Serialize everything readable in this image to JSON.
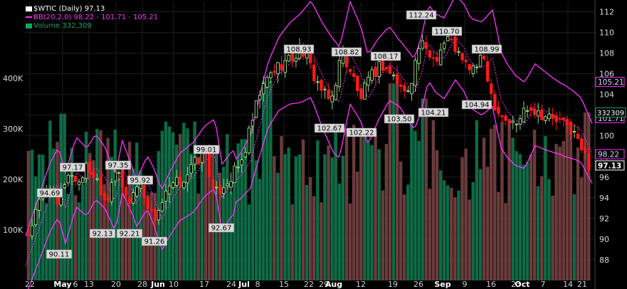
{
  "chart_data": {
    "type": "candlestick",
    "symbol": "$WTIC",
    "title": "$WTIC (Daily) 97.13",
    "legend": [
      {
        "text": "$WTIC (Daily) 97.13",
        "color": "#ffffff"
      },
      {
        "text": "BB(20,2.0) 98.22 - 101.71 - 105.21",
        "color": "#ff33ff"
      },
      {
        "text": "Volume 332,309",
        "color": "#13a36a"
      }
    ],
    "price_axis": {
      "min": 86,
      "max": 113,
      "ticks": [
        88,
        90,
        92,
        94,
        96,
        98,
        100,
        102,
        104,
        106,
        108,
        110,
        112
      ],
      "side": "right"
    },
    "volume_axis": {
      "max": 450000,
      "ticks": [
        100000,
        200000,
        300000,
        400000
      ],
      "tick_labels": [
        "100K",
        "200K",
        "300K",
        "400K"
      ],
      "side": "left"
    },
    "x_labels": [
      "22",
      "May",
      "6",
      "13",
      "20",
      "28",
      "Jun",
      "10",
      "17",
      "24",
      "Jul",
      "8",
      "15",
      "22",
      "29",
      "Aug",
      "12",
      "19",
      "26",
      "Sep",
      "9",
      "16",
      "23",
      "Oct",
      "7",
      "14",
      "21"
    ],
    "x_label_bold": [
      "May",
      "Jun",
      "Jul",
      "Aug",
      "Sep",
      "Oct"
    ],
    "last_values": {
      "close": 97.13,
      "bb_lower": 98.22,
      "bb_mid": 101.71,
      "bb_upper": 105.21,
      "volume": 332309
    },
    "last_value_labels": {
      "close": "97.13",
      "bb_lower": "98.22",
      "bb_mid": "101.71",
      "bb_upper": "105.21",
      "volume": "332309"
    },
    "annotations": [
      {
        "text": "90.11",
        "value": 90.11
      },
      {
        "text": "94.69",
        "value": 94.69
      },
      {
        "text": "97.17",
        "value": 97.17
      },
      {
        "text": "92.13",
        "value": 92.13
      },
      {
        "text": "97.35",
        "value": 97.35
      },
      {
        "text": "92.21",
        "value": 92.21
      },
      {
        "text": "95.92",
        "value": 95.92
      },
      {
        "text": "91.26",
        "value": 91.26
      },
      {
        "text": "99.01",
        "value": 99.01
      },
      {
        "text": "92.67",
        "value": 92.67
      },
      {
        "text": "108.93",
        "value": 108.93
      },
      {
        "text": "102.67",
        "value": 102.67
      },
      {
        "text": "108.82",
        "value": 108.82
      },
      {
        "text": "102.22",
        "value": 102.22
      },
      {
        "text": "108.17",
        "value": 108.17
      },
      {
        "text": "103.50",
        "value": 103.5
      },
      {
        "text": "112.24",
        "value": 112.24
      },
      {
        "text": "104.21",
        "value": 104.21
      },
      {
        "text": "110.70",
        "value": 110.7
      },
      {
        "text": "108.99",
        "value": 108.99
      },
      {
        "text": "104.94",
        "value": 104.94
      }
    ],
    "colors": {
      "up": "#b9f7a0",
      "down": "#ff1a1a",
      "bb": "#ff33ff",
      "vol_up": "#0d6b45",
      "vol_down": "#6b3c3c",
      "grid": "#1e1e1e"
    },
    "grid": true
  }
}
